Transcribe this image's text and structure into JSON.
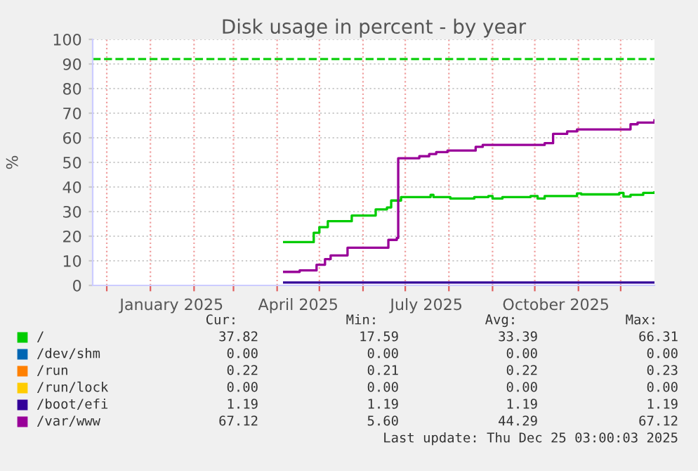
{
  "chart_data": {
    "type": "step",
    "title": "Disk usage in percent - by year",
    "ylabel": "%",
    "xlim": [
      "2024-11-21",
      "2025-12-25"
    ],
    "ylim": [
      0,
      100
    ],
    "yticks": [
      0,
      10,
      20,
      30,
      40,
      50,
      60,
      70,
      80,
      90,
      100
    ],
    "xticks": [
      {
        "value": "2024-12-01",
        "label": null
      },
      {
        "value": "2025-01-01",
        "label": null
      },
      {
        "value": "2025-01-16",
        "label": "January 2025"
      },
      {
        "value": "2025-02-01",
        "label": null
      },
      {
        "value": "2025-03-01",
        "label": null
      },
      {
        "value": "2025-04-01",
        "label": null
      },
      {
        "value": "2025-04-16",
        "label": "April 2025"
      },
      {
        "value": "2025-05-01",
        "label": null
      },
      {
        "value": "2025-06-01",
        "label": null
      },
      {
        "value": "2025-07-01",
        "label": null
      },
      {
        "value": "2025-07-16",
        "label": "July 2025"
      },
      {
        "value": "2025-08-01",
        "label": null
      },
      {
        "value": "2025-09-01",
        "label": null
      },
      {
        "value": "2025-10-01",
        "label": null
      },
      {
        "value": "2025-10-16",
        "label": "October 2025"
      },
      {
        "value": "2025-11-01",
        "label": null
      },
      {
        "value": "2025-12-01",
        "label": null
      }
    ],
    "grid": true,
    "legend": "bottom",
    "line_style": "solid",
    "marker": "none",
    "series": [
      {
        "name": "/",
        "color": "#00cc00",
        "x": [
          "2025-04-06",
          "2025-04-27",
          "2025-05-01",
          "2025-05-07",
          "2025-05-24",
          "2025-06-10",
          "2025-06-18",
          "2025-06-21",
          "2025-06-28",
          "2025-07-13",
          "2025-07-19",
          "2025-07-21",
          "2025-08-02",
          "2025-08-19",
          "2025-08-29",
          "2025-09-01",
          "2025-09-08",
          "2025-09-28",
          "2025-10-03",
          "2025-10-08",
          "2025-10-31",
          "2025-11-03",
          "2025-11-30",
          "2025-12-03",
          "2025-12-08",
          "2025-12-17",
          "2025-12-25"
        ],
        "values": [
          17.6,
          21.4,
          23.7,
          26.1,
          28.4,
          30.9,
          31.7,
          34.5,
          35.9,
          35.9,
          36.8,
          35.9,
          35.3,
          35.9,
          36.3,
          35.3,
          35.9,
          36.3,
          35.3,
          36.3,
          37.4,
          37.0,
          37.6,
          36.1,
          36.8,
          37.6,
          37.8
        ]
      },
      {
        "name": "/dev/shm",
        "color": "#0066b3"
      },
      {
        "name": "/run",
        "color": "#ff8000"
      },
      {
        "name": "/run/lock",
        "color": "#ffcc00"
      },
      {
        "name": "/boot/efi",
        "color": "#330099",
        "x": [
          "2025-04-06",
          "2025-12-25"
        ],
        "values": [
          1.2,
          1.2
        ]
      },
      {
        "name": "/var/www",
        "color": "#990099",
        "x": [
          "2025-04-06",
          "2025-04-17",
          "2025-04-29",
          "2025-05-01",
          "2025-05-05",
          "2025-05-09",
          "2025-05-21",
          "2025-06-19",
          "2025-06-25",
          "2025-06-26",
          "2025-07-11",
          "2025-07-18",
          "2025-07-23",
          "2025-07-31",
          "2025-08-20",
          "2025-08-25",
          "2025-10-08",
          "2025-10-14",
          "2025-10-24",
          "2025-10-31",
          "2025-12-08",
          "2025-12-13",
          "2025-12-25"
        ],
        "values": [
          5.5,
          6.1,
          8.4,
          8.4,
          10.7,
          12.2,
          15.3,
          18.5,
          19.3,
          51.7,
          52.5,
          53.4,
          54.2,
          54.8,
          56.3,
          57.1,
          57.8,
          61.6,
          62.6,
          63.4,
          65.5,
          66.2,
          67.1
        ]
      }
    ],
    "ref_lines": [
      {
        "axis": "y",
        "value": 92,
        "label": null,
        "color": "#00cc00",
        "line_style": "dashed"
      }
    ],
    "annotations": [
      "Cur:",
      "Min:",
      "Avg:",
      "Max:",
      "37.82",
      "17.59",
      "33.39",
      "66.31",
      "0.00",
      "0.00",
      "0.00",
      "0.00",
      "0.22",
      "0.21",
      "0.22",
      "0.23",
      "0.00",
      "0.00",
      "0.00",
      "0.00",
      "1.19",
      "1.19",
      "1.19",
      "1.19",
      "67.12",
      "5.60",
      "44.29",
      "67.12",
      "Last update: Thu Dec 25 03:00:03 2025"
    ]
  }
}
